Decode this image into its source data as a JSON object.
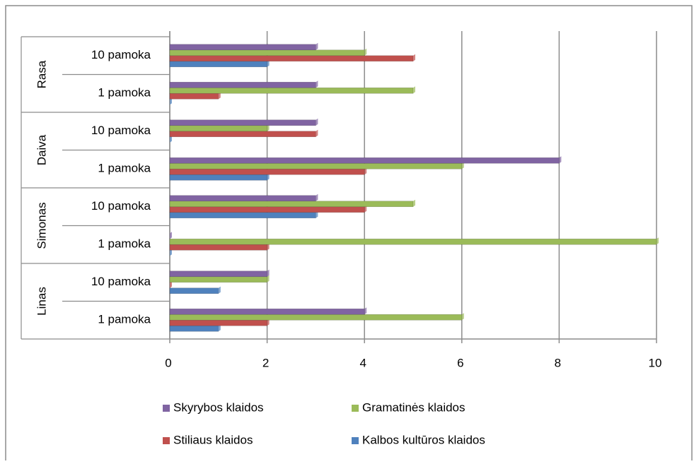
{
  "chart_data": {
    "type": "bar",
    "orientation": "horizontal",
    "groups": [
      "Linas",
      "Simonas",
      "Daiva",
      "Rasa"
    ],
    "categories": [
      "1 pamoka",
      "10 pamoka",
      "1 pamoka",
      "10 pamoka",
      "1 pamoka",
      "10 pamoka",
      "1 pamoka",
      "10 pamoka"
    ],
    "series": [
      {
        "name": "Kalbos kultūros klaidos",
        "color": "#4f81bd",
        "values": [
          1,
          1,
          0,
          3,
          2,
          0,
          0,
          2
        ]
      },
      {
        "name": "Stiliaus klaidos",
        "color": "#c0504d",
        "values": [
          2,
          0,
          2,
          4,
          4,
          3,
          1,
          5
        ]
      },
      {
        "name": "Gramatinės klaidos",
        "color": "#9bbb59",
        "values": [
          6,
          2,
          10,
          5,
          6,
          2,
          5,
          4
        ]
      },
      {
        "name": "Skyrybos klaidos",
        "color": "#8064a2",
        "values": [
          4,
          2,
          0,
          3,
          8,
          3,
          3,
          3
        ]
      }
    ],
    "xlim": [
      0,
      10
    ],
    "xticks": [
      0,
      2,
      4,
      6,
      8,
      10
    ],
    "grid": true
  }
}
